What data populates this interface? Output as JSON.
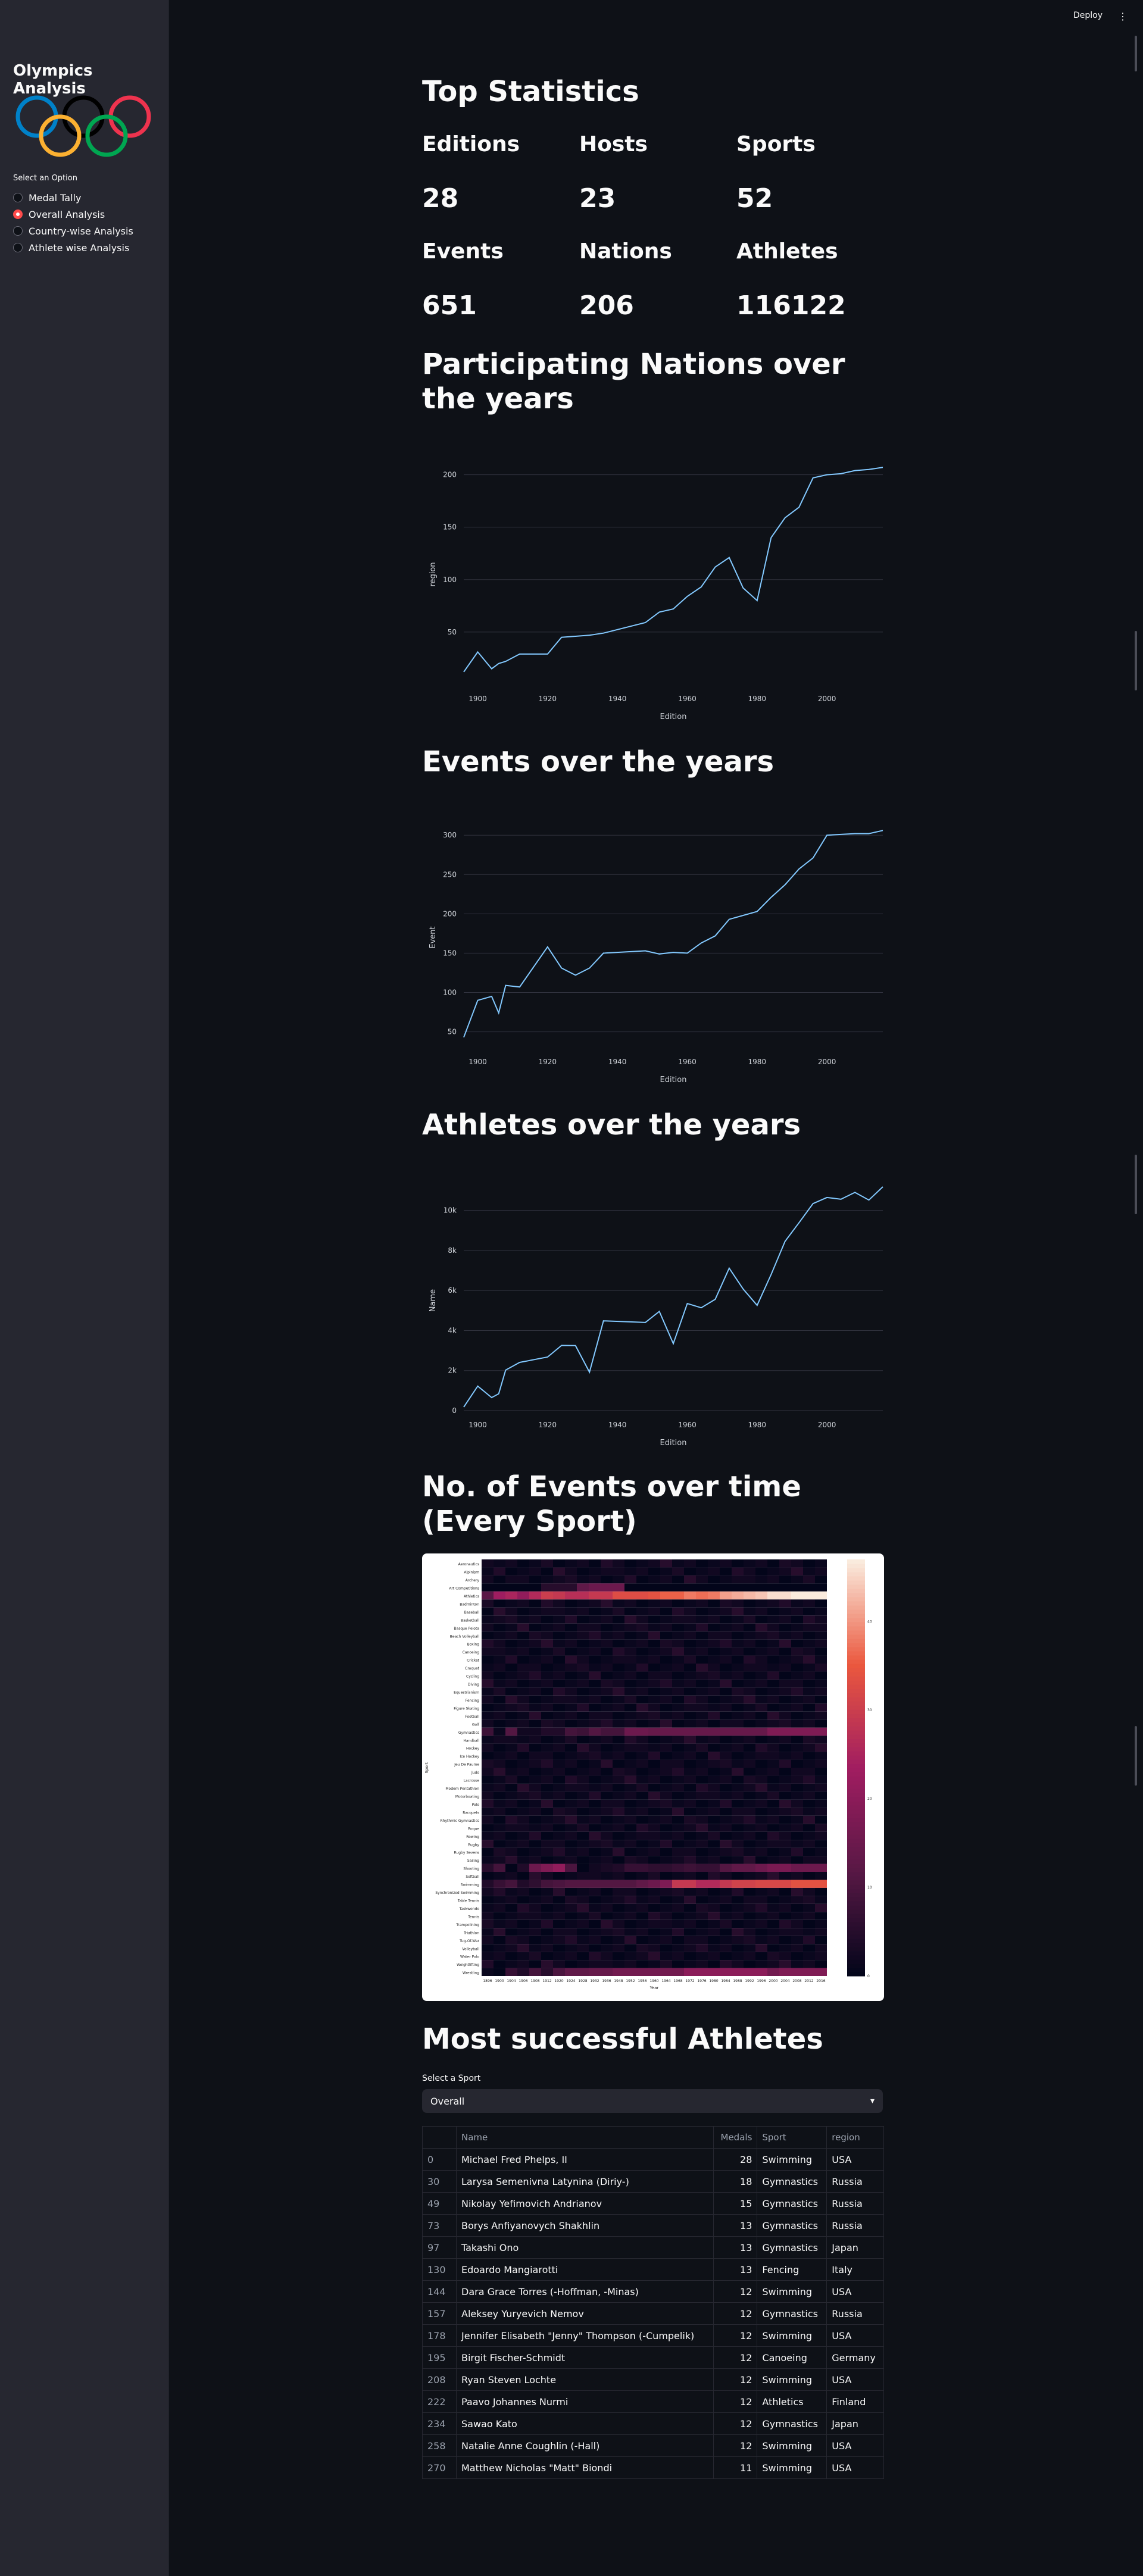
{
  "sidebar": {
    "title": "Olympics Analysis",
    "select_label": "Select an Option",
    "options": [
      "Medal Tally",
      "Overall Analysis",
      "Country-wise Analysis",
      "Athlete wise Analysis"
    ],
    "selected": "Overall Analysis"
  },
  "header": {
    "deploy": "Deploy",
    "menu": "⋮"
  },
  "stats": {
    "title": "Top Statistics",
    "items": [
      {
        "label": "Editions",
        "value": "28"
      },
      {
        "label": "Hosts",
        "value": "23"
      },
      {
        "label": "Sports",
        "value": "52"
      },
      {
        "label": "Events",
        "value": "651"
      },
      {
        "label": "Nations",
        "value": "206"
      },
      {
        "label": "Athletes",
        "value": "116122"
      }
    ]
  },
  "sections": {
    "nations_title": "Participating Nations over the years",
    "events_title": "Events over the years",
    "athletes_title": "Athletes over the years",
    "heatmap_title": "No. of Events over time (Every Sport)",
    "athletes_table_title": "Most successful Athletes"
  },
  "chart_data": [
    {
      "type": "line",
      "xlabel": "Edition",
      "ylabel": "region",
      "xlim": [
        1896,
        2016
      ],
      "ylim": [
        0,
        210
      ],
      "xticks": [
        1900,
        1920,
        1940,
        1960,
        1980,
        2000
      ],
      "yticks": [
        50,
        100,
        150,
        200
      ],
      "x": [
        1896,
        1900,
        1904,
        1906,
        1908,
        1912,
        1920,
        1924,
        1928,
        1932,
        1936,
        1948,
        1952,
        1956,
        1960,
        1964,
        1968,
        1972,
        1976,
        1980,
        1984,
        1988,
        1992,
        1996,
        2000,
        2004,
        2008,
        2012,
        2016
      ],
      "y": [
        12,
        31,
        15,
        20,
        22,
        29,
        29,
        45,
        46,
        47,
        49,
        59,
        69,
        72,
        84,
        93,
        112,
        121,
        92,
        80,
        140,
        159,
        169,
        197,
        200,
        201,
        204,
        205,
        207
      ]
    },
    {
      "type": "line",
      "xlabel": "Edition",
      "ylabel": "Event",
      "xlim": [
        1896,
        2016
      ],
      "ylim": [
        30,
        310
      ],
      "xticks": [
        1900,
        1920,
        1940,
        1960,
        1980,
        2000
      ],
      "yticks": [
        50,
        100,
        150,
        200,
        250,
        300
      ],
      "x": [
        1896,
        1900,
        1904,
        1906,
        1908,
        1912,
        1920,
        1924,
        1928,
        1932,
        1936,
        1948,
        1952,
        1956,
        1960,
        1964,
        1968,
        1972,
        1976,
        1980,
        1984,
        1988,
        1992,
        1996,
        2000,
        2004,
        2008,
        2012,
        2016
      ],
      "y": [
        43,
        90,
        95,
        74,
        109,
        107,
        158,
        131,
        122,
        131,
        150,
        153,
        149,
        151,
        150,
        163,
        172,
        193,
        198,
        203,
        221,
        237,
        257,
        271,
        300,
        301,
        302,
        302,
        306
      ]
    },
    {
      "type": "line",
      "xlabel": "Edition",
      "ylabel": "Name",
      "xlim": [
        1896,
        2016
      ],
      "ylim": [
        0,
        11000
      ],
      "xticks": [
        1900,
        1920,
        1940,
        1960,
        1980,
        2000
      ],
      "yticks": [
        0,
        2000,
        4000,
        6000,
        8000,
        10000
      ],
      "ytick_labels": [
        "0",
        "2k",
        "4k",
        "6k",
        "8k",
        "10k"
      ],
      "x": [
        1896,
        1900,
        1904,
        1906,
        1908,
        1912,
        1920,
        1924,
        1928,
        1932,
        1936,
        1948,
        1952,
        1956,
        1960,
        1964,
        1968,
        1972,
        1976,
        1980,
        1984,
        1988,
        1992,
        1996,
        2000,
        2004,
        2008,
        2012,
        2016
      ],
      "y": [
        176,
        1224,
        650,
        841,
        2024,
        2409,
        2676,
        3256,
        3247,
        1922,
        4484,
        4402,
        4955,
        3347,
        5348,
        5137,
        5558,
        7113,
        6073,
        5259,
        6797,
        8454,
        9386,
        10339,
        10647,
        10557,
        10899,
        10517,
        11179
      ]
    },
    {
      "type": "heatmap",
      "xlabel": "Year",
      "ylabel": "Sport",
      "colorbar_ticks": [
        0,
        10,
        20,
        30,
        40
      ],
      "x": [
        "1896",
        "1900",
        "1904",
        "1906",
        "1908",
        "1912",
        "1920",
        "1924",
        "1928",
        "1932",
        "1936",
        "1948",
        "1952",
        "1956",
        "1960",
        "1964",
        "1968",
        "1972",
        "1976",
        "1980",
        "1984",
        "1988",
        "1992",
        "1996",
        "2000",
        "2004",
        "2008",
        "2012",
        "2016"
      ],
      "y": [
        "Aeronautics",
        "Alpinism",
        "Archery",
        "Art Competitions",
        "Athletics",
        "Badminton",
        "Baseball",
        "Basketball",
        "Basque Pelota",
        "Beach Volleyball",
        "Boxing",
        "Canoeing",
        "Cricket",
        "Croquet",
        "Cycling",
        "Diving",
        "Equestrianism",
        "Fencing",
        "Figure Skating",
        "Football",
        "Golf",
        "Gymnastics",
        "Handball",
        "Hockey",
        "Ice Hockey",
        "Jeu De Paume",
        "Judo",
        "Lacrosse",
        "Modern Pentathlon",
        "Motorboating",
        "Polo",
        "Racquets",
        "Rhythmic Gymnastics",
        "Roque",
        "Rowing",
        "Rugby",
        "Rugby Sevens",
        "Sailing",
        "Shooting",
        "Softball",
        "Swimming",
        "Synchronized Swimming",
        "Table Tennis",
        "Taekwondo",
        "Tennis",
        "Trampolining",
        "Triathlon",
        "Tug-Of-War",
        "Volleyball",
        "Water Polo",
        "Weightlifting",
        "Wrestling"
      ],
      "highlights": {
        "Athletics": [
          12,
          23,
          25,
          21,
          26,
          30,
          29,
          27,
          27,
          29,
          29,
          33,
          33,
          33,
          34,
          36,
          36,
          38,
          37,
          38,
          41,
          42,
          43,
          44,
          46,
          46,
          47,
          47,
          47
        ],
        "Swimming": [
          4,
          7,
          9,
          4,
          6,
          9,
          10,
          11,
          11,
          11,
          11,
          11,
          11,
          13,
          15,
          18,
          29,
          29,
          26,
          26,
          29,
          31,
          31,
          32,
          32,
          32,
          34,
          34,
          34
        ],
        "Art Competitions": [
          0,
          0,
          0,
          0,
          0,
          5,
          5,
          5,
          13,
          15,
          15,
          15,
          0,
          0,
          0,
          0,
          0,
          0,
          0,
          0,
          0,
          0,
          0,
          0,
          0,
          0,
          0,
          0,
          0
        ],
        "Wrestling": [
          1,
          0,
          7,
          4,
          9,
          5,
          10,
          13,
          13,
          14,
          14,
          16,
          16,
          16,
          16,
          16,
          16,
          20,
          20,
          20,
          20,
          20,
          20,
          20,
          16,
          18,
          18,
          18,
          18
        ],
        "Gymnastics": [
          8,
          1,
          11,
          2,
          2,
          4,
          4,
          9,
          8,
          11,
          9,
          9,
          15,
          15,
          14,
          14,
          14,
          14,
          14,
          14,
          14,
          14,
          14,
          14,
          18,
          18,
          18,
          18,
          18
        ],
        "Shooting": [
          5,
          9,
          0,
          4,
          15,
          18,
          21,
          10,
          0,
          2,
          3,
          4,
          7,
          7,
          6,
          6,
          7,
          8,
          7,
          7,
          11,
          13,
          13,
          15,
          17,
          17,
          15,
          15,
          15
        ]
      }
    }
  ],
  "athletes": {
    "select_label": "Select a Sport",
    "selected_sport": "Overall",
    "columns": [
      "",
      "Name",
      "Medals",
      "Sport",
      "region"
    ],
    "rows": [
      {
        "idx": "0",
        "name": "Michael Fred Phelps, II",
        "medals": "28",
        "sport": "Swimming",
        "region": "USA"
      },
      {
        "idx": "30",
        "name": "Larysa Semenivna Latynina (Diriy-)",
        "medals": "18",
        "sport": "Gymnastics",
        "region": "Russia"
      },
      {
        "idx": "49",
        "name": "Nikolay Yefimovich Andrianov",
        "medals": "15",
        "sport": "Gymnastics",
        "region": "Russia"
      },
      {
        "idx": "73",
        "name": "Borys Anfiyanovych Shakhlin",
        "medals": "13",
        "sport": "Gymnastics",
        "region": "Russia"
      },
      {
        "idx": "97",
        "name": "Takashi Ono",
        "medals": "13",
        "sport": "Gymnastics",
        "region": "Japan"
      },
      {
        "idx": "130",
        "name": "Edoardo Mangiarotti",
        "medals": "13",
        "sport": "Fencing",
        "region": "Italy"
      },
      {
        "idx": "144",
        "name": "Dara Grace Torres (-Hoffman, -Minas)",
        "medals": "12",
        "sport": "Swimming",
        "region": "USA"
      },
      {
        "idx": "157",
        "name": "Aleksey Yuryevich Nemov",
        "medals": "12",
        "sport": "Gymnastics",
        "region": "Russia"
      },
      {
        "idx": "178",
        "name": "Jennifer Elisabeth \"Jenny\" Thompson (-Cumpelik)",
        "medals": "12",
        "sport": "Swimming",
        "region": "USA"
      },
      {
        "idx": "195",
        "name": "Birgit Fischer-Schmidt",
        "medals": "12",
        "sport": "Canoeing",
        "region": "Germany"
      },
      {
        "idx": "208",
        "name": "Ryan Steven Lochte",
        "medals": "12",
        "sport": "Swimming",
        "region": "USA"
      },
      {
        "idx": "222",
        "name": "Paavo Johannes Nurmi",
        "medals": "12",
        "sport": "Athletics",
        "region": "Finland"
      },
      {
        "idx": "234",
        "name": "Sawao Kato",
        "medals": "12",
        "sport": "Gymnastics",
        "region": "Japan"
      },
      {
        "idx": "258",
        "name": "Natalie Anne Coughlin (-Hall)",
        "medals": "12",
        "sport": "Swimming",
        "region": "USA"
      },
      {
        "idx": "270",
        "name": "Matthew Nicholas \"Matt\" Biondi",
        "medals": "11",
        "sport": "Swimming",
        "region": "USA"
      }
    ]
  },
  "colors": {
    "background": "#0e1117",
    "sidebar": "#262730",
    "accent": "#ff4b4b",
    "line": "#83c9ff",
    "rings": [
      "#0081c8",
      "#fcb131",
      "#000000",
      "#00a651",
      "#ee334e"
    ]
  }
}
